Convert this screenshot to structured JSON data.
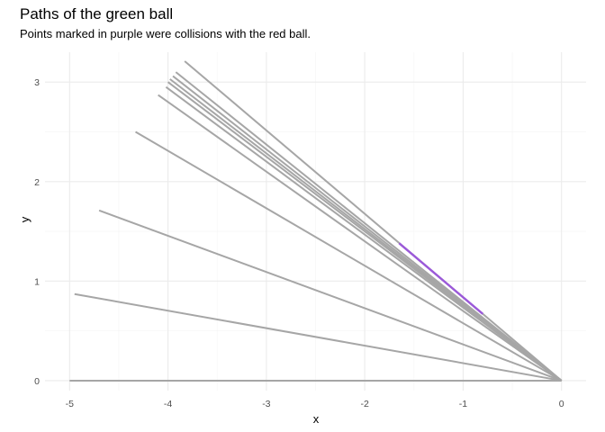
{
  "chart_data": {
    "type": "line",
    "title": "Paths of the green ball",
    "subtitle": "Points marked in purple were collisions with the red ball.",
    "xlabel": "x",
    "ylabel": "y",
    "xlim": [
      -5.25,
      0.25
    ],
    "ylim": [
      -0.1,
      3.3
    ],
    "x_ticks": [
      -5,
      -4,
      -3,
      -2,
      -1,
      0
    ],
    "x_tick_labels": [
      "-5",
      "-4",
      "-3",
      "-2",
      "-1",
      "0"
    ],
    "y_ticks": [
      0,
      1,
      2,
      3
    ],
    "y_tick_labels": [
      "0",
      "1",
      "2",
      "3"
    ],
    "grid": true,
    "legend": "none",
    "colors": {
      "path": "#a6a6a6",
      "collision": "#9b59d9",
      "grid_major": "#ebebeb",
      "grid_minor": "#f4f4f4"
    },
    "paths": [
      {
        "x": [
          0,
          -5.0
        ],
        "y": [
          0,
          0.0
        ]
      },
      {
        "x": [
          0,
          -4.95
        ],
        "y": [
          0,
          0.87
        ]
      },
      {
        "x": [
          0,
          -4.7
        ],
        "y": [
          0,
          1.71
        ]
      },
      {
        "x": [
          0,
          -4.33
        ],
        "y": [
          0,
          2.5
        ]
      },
      {
        "x": [
          0,
          -4.1
        ],
        "y": [
          0,
          2.87
        ]
      },
      {
        "x": [
          0,
          -4.02
        ],
        "y": [
          0,
          2.95
        ]
      },
      {
        "x": [
          0,
          -4.0
        ],
        "y": [
          0,
          3.0
        ]
      },
      {
        "x": [
          0,
          -3.98
        ],
        "y": [
          0,
          3.03
        ]
      },
      {
        "x": [
          0,
          -3.95
        ],
        "y": [
          0,
          3.06
        ]
      },
      {
        "x": [
          0,
          -3.92
        ],
        "y": [
          0,
          3.1
        ]
      },
      {
        "x": [
          0,
          -3.83
        ],
        "y": [
          0,
          3.21
        ]
      }
    ],
    "collisions": [
      {
        "x": [
          -0.8,
          -1.65
        ],
        "y": [
          0.67,
          1.38
        ]
      }
    ]
  }
}
